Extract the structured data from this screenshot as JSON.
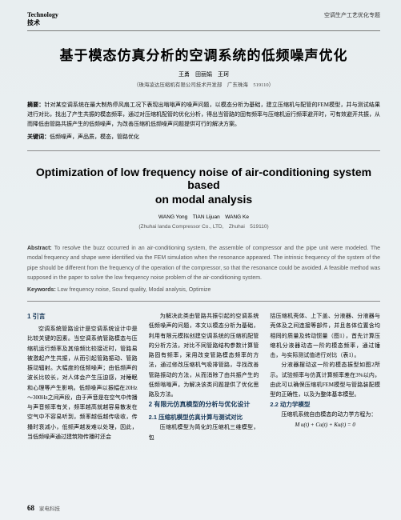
{
  "header": {
    "left_en": "Technology",
    "left_cn": "技术",
    "right": "空调生产工艺优化专题"
  },
  "title_cn": "基于模态仿真分析的空调系统的低频噪声优化",
  "authors_cn": "王勇　田丽娟　王珂",
  "affil_cn": "（珠海凌达压缩机有限公司技术开发部　广东珠海　519110）",
  "abstract_cn_label": "摘要：",
  "abstract_cn": "针对某空调系统在最大制热停风扇工况下表现出嗡嗡声的噪声问题，以模态分析为基础，建立压缩机与配管的FEM模型，并与测试结果进行对比，找出了产生共振的模态频率，通过对压缩机配管的优化分析，得出当管路的固有频率与压缩机运行频率避开时，可有效避开共振，从而降低由管路共振产生的低频噪声，为改善压缩机低频噪声问题提供可行的解决方案。",
  "keywords_cn_label": "关键词：",
  "keywords_cn": "低频噪声，声品质，模态，管路优化",
  "title_en_1": "Optimization of low frequency noise of air-conditioning system based",
  "title_en_2": "on modal analysis",
  "authors_en": "WANG Yong　TIAN Lijuan　WANG Ke",
  "affil_en": "(Zhuhai landa Compressor Co., LTD,　Zhuhai　519110)",
  "abstract_en_label": "Abstract: ",
  "abstract_en": "To resolve the buzz occurred in an air-conditioning system, the assemble of compressor and the pipe unit were modeled. The modal frequency and shape were identified via the FEM simulation when the resonance appeared. The intrinsic frequency of the system of the pipe should be different from the frequency of the operation of the compressor, so that the resonance could be avoided. A feasible method was supposed in the paper to solve the low frequency noise problem of the air-conditioning system.",
  "keywords_en_label": "Keywords: ",
  "keywords_en": "Low frequency noise, Sound quality, Modal analysis, Optimize",
  "col1": {
    "sec1": "1 引言",
    "p1": "空调系统管路设计是空调系统设计中是比较关键的因素。当空调系统管路模态与压缩机运行频率及其倍频比较接近时，管路易被激起产生共振，从而引起管路振动、管路振动辐射。大幅度的低频噪声；由低频声的波长比较长，对人体会产生压迫感，对睡眠和心理等产生影响。低频噪声以振幅在20Hz～300Hz之间声段，由于声音是在空气中传播与声音频率有关，频率越高就越容易散发在空气中不容易听到，频率越低越传吸收，传播时衰减小，低频声越发难以处理，因此，当低频噪声通过建筑物传播时还会",
    "sec2_placeholder": ""
  },
  "col2": {
    "p1": "为解决此类由管路共振引起的空调系统低频噪声的问题，本文以模态分析为基础，利用有限元模拟创建空调系统的压缩机配管的分析方法，对比不同管路结构参数计算管路固有频率，采用改变管路模态频率的方法，通过修改压缩机气吸排管路，寻找改善管路振动的方法，从而消除了由共振产生的低频嗡嗡声，为解决该类问题提供了优化思路及方法。",
    "sec2": "2 有限元仿真模型的分析与优化设计",
    "sub21": "2.1 压缩机模型仿真计算与测试对比",
    "p2": "压缩机模型为简化的压缩机三维模型，包"
  },
  "col3": {
    "p1": "括压缩机壳体、上下盖、分液器、分液器与壳体及之间连接等部件，并且各体位置含均相同的质量及转动惯量（图1），首先计算压缩机分液器动态一阶的模态频率，通过锤击，与实际测试值进行对比（表1）。",
    "p2": "分液器摆动这一阶的模态振型如图2所示。试验频率与仿真计算频率差在3%以内，由此可以确保压缩机FEM模型与管路装配模型的正确性，以及为整体基本模型。",
    "sub22": "2.2 动力学模型",
    "p3": "压缩机系统自由模态的动力学方程为：",
    "formula": "M u(t) + Cu(t) + Ku(t) = 0"
  },
  "footer": {
    "page": "68",
    "mag": "家电科技"
  }
}
